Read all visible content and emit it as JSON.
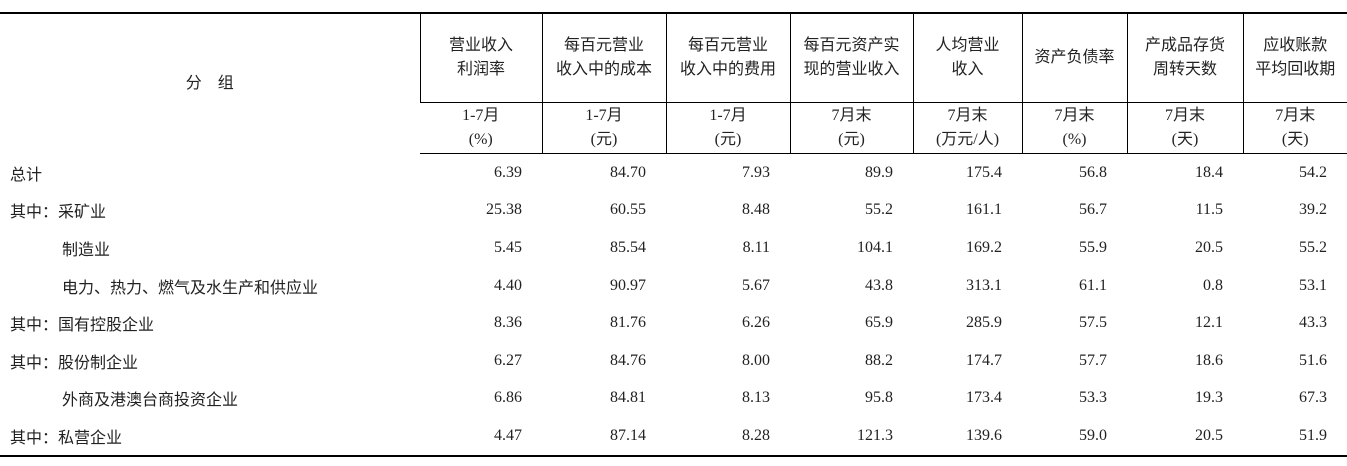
{
  "table": {
    "header": {
      "group": "分　组",
      "columns": [
        {
          "title": [
            "营业收入",
            "利润率"
          ],
          "unit": [
            "1-7月",
            "(%)"
          ]
        },
        {
          "title": [
            "每百元营业",
            "收入中的成本"
          ],
          "unit": [
            "1-7月",
            "(元)"
          ]
        },
        {
          "title": [
            "每百元营业",
            "收入中的费用"
          ],
          "unit": [
            "1-7月",
            "(元)"
          ]
        },
        {
          "title": [
            "每百元资产实",
            "现的营业收入"
          ],
          "unit": [
            "7月末",
            "(元)"
          ]
        },
        {
          "title": [
            "人均营业",
            "收入"
          ],
          "unit": [
            "7月末",
            "(万元/人)"
          ]
        },
        {
          "title": [
            "资产负债率"
          ],
          "unit": [
            "7月末",
            "(%)"
          ]
        },
        {
          "title": [
            "产成品存货",
            "周转天数"
          ],
          "unit": [
            "7月末",
            "(天)"
          ]
        },
        {
          "title": [
            "应收账款",
            "平均回收期"
          ],
          "unit": [
            "7月末",
            "(天)"
          ]
        }
      ]
    },
    "rows": [
      {
        "label": "总计",
        "values": [
          "6.39",
          "84.70",
          "7.93",
          "89.9",
          "175.4",
          "56.8",
          "18.4",
          "54.2"
        ]
      },
      {
        "label": "其中：采矿业",
        "values": [
          "25.38",
          "60.55",
          "8.48",
          "55.2",
          "161.1",
          "56.7",
          "11.5",
          "39.2"
        ]
      },
      {
        "label": "制造业",
        "values": [
          "5.45",
          "85.54",
          "8.11",
          "104.1",
          "169.2",
          "55.9",
          "20.5",
          "55.2"
        ]
      },
      {
        "label": "电力、热力、燃气及水生产和供应业",
        "values": [
          "4.40",
          "90.97",
          "5.67",
          "43.8",
          "313.1",
          "61.1",
          "0.8",
          "53.1"
        ]
      },
      {
        "label": "其中：国有控股企业",
        "values": [
          "8.36",
          "81.76",
          "6.26",
          "65.9",
          "285.9",
          "57.5",
          "12.1",
          "43.3"
        ]
      },
      {
        "label": "其中：股份制企业",
        "values": [
          "6.27",
          "84.76",
          "8.00",
          "88.2",
          "174.7",
          "57.7",
          "18.6",
          "51.6"
        ]
      },
      {
        "label": "外商及港澳台商投资企业",
        "values": [
          "6.86",
          "84.81",
          "8.13",
          "95.8",
          "173.4",
          "53.3",
          "19.3",
          "67.3"
        ]
      },
      {
        "label": "其中：私营企业",
        "values": [
          "4.47",
          "87.14",
          "8.28",
          "121.3",
          "139.6",
          "59.0",
          "20.5",
          "51.9"
        ]
      }
    ]
  }
}
